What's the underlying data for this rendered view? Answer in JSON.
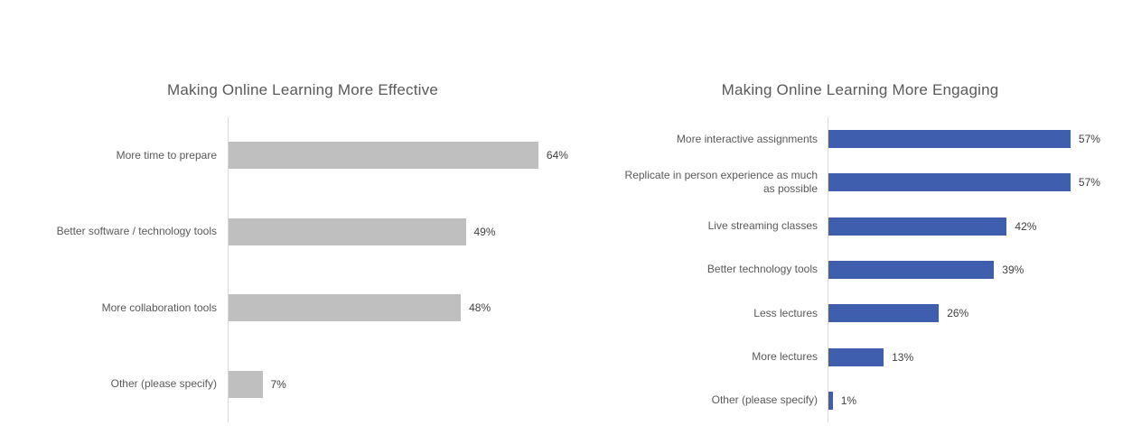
{
  "page": {
    "background_color": "#ffffff"
  },
  "colors": {
    "effective_bar": "#bfbfbf",
    "engaging_bar": "#3f5ead",
    "axis_line": "#d9d9d9",
    "title_text": "#595959",
    "category_text": "#595959",
    "value_text": "#404040"
  },
  "chart_data": [
    {
      "type": "bar",
      "orientation": "horizontal",
      "title": "Making Online Learning More Effective",
      "categories": [
        "More time to prepare",
        "Better software / technology tools",
        "More collaboration tools",
        "Other (please specify)"
      ],
      "values": [
        64,
        49,
        48,
        7
      ],
      "value_labels": [
        "64%",
        "49%",
        "48%",
        "7%"
      ],
      "xlabel": "",
      "ylabel": "",
      "xlim": [
        0,
        70
      ],
      "grid": false,
      "legend": false,
      "bar_color": "#bfbfbf",
      "data_labels_position": "outside-end"
    },
    {
      "type": "bar",
      "orientation": "horizontal",
      "title": "Making Online Learning More Engaging",
      "categories": [
        "More interactive assignments",
        "Replicate in person experience as much as possible",
        "Live streaming classes",
        "Better technology tools",
        "Less lectures",
        "More lectures",
        "Other (please specify)"
      ],
      "values": [
        57,
        57,
        42,
        39,
        26,
        13,
        1
      ],
      "value_labels": [
        "57%",
        "57%",
        "42%",
        "39%",
        "26%",
        "13%",
        "1%"
      ],
      "xlabel": "",
      "ylabel": "",
      "xlim": [
        0,
        60
      ],
      "grid": false,
      "legend": false,
      "bar_color": "#3f5ead",
      "data_labels_position": "outside-end"
    }
  ]
}
